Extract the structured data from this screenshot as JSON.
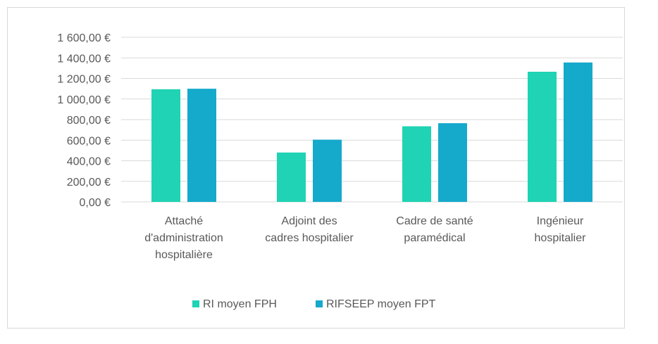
{
  "chart_data": {
    "type": "bar",
    "title": "",
    "xlabel": "",
    "ylabel": "",
    "categories": [
      [
        "Attaché",
        "d'administration",
        "hospitalière"
      ],
      [
        "Adjoint des",
        "cadres hospitalier"
      ],
      [
        "Cadre de santé",
        "paramédical"
      ],
      [
        "Ingénieur",
        "hospitalier"
      ]
    ],
    "series": [
      {
        "name": "RI moyen FPH",
        "color": "#1fd3b4",
        "values": [
          1095,
          480,
          735,
          1265
        ]
      },
      {
        "name": "RIFSEEP moyen FPT",
        "color": "#15a9cb",
        "values": [
          1100,
          605,
          765,
          1355
        ]
      }
    ],
    "ylim": [
      0,
      1600
    ],
    "y_ticks": [
      0,
      200,
      400,
      600,
      800,
      1000,
      1200,
      1400,
      1600
    ],
    "y_tick_labels": [
      "0,00 €",
      "200,00 €",
      "400,00 €",
      "600,00 €",
      "800,00 €",
      "1 000,00 €",
      "1 200,00 €",
      "1 400,00 €",
      "1 600,00 €"
    ],
    "grid": true,
    "legend_position": "bottom",
    "gridline_color": "#d9d9d9",
    "text_color": "#595959"
  }
}
